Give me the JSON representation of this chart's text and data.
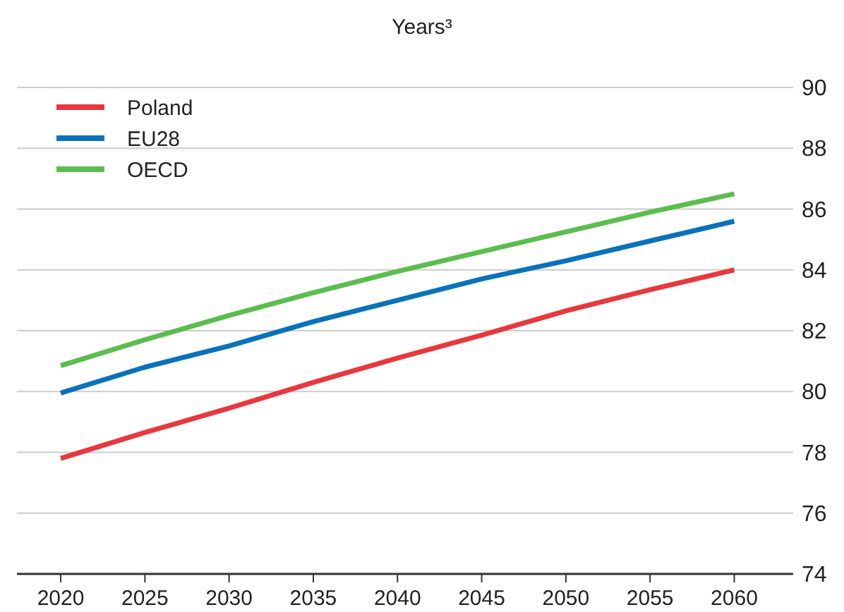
{
  "chart_data": {
    "type": "line",
    "subtitle": "Years³",
    "x": [
      2020,
      2025,
      2030,
      2035,
      2040,
      2045,
      2050,
      2055,
      2060
    ],
    "series": [
      {
        "name": "Poland",
        "color": "#e8383d",
        "values": [
          77.8,
          78.65,
          79.45,
          80.3,
          81.1,
          81.85,
          82.65,
          83.35,
          84.0
        ]
      },
      {
        "name": "EU28",
        "color": "#0a72ba",
        "values": [
          79.95,
          80.8,
          81.5,
          82.3,
          83.0,
          83.7,
          84.3,
          84.95,
          85.6
        ]
      },
      {
        "name": "OECD",
        "color": "#5cbd4f",
        "values": [
          80.85,
          81.7,
          82.5,
          83.25,
          83.95,
          84.6,
          85.25,
          85.9,
          86.5
        ]
      }
    ],
    "xlim": [
      2017.4,
      2063.5
    ],
    "xticks": [
      2020,
      2025,
      2030,
      2035,
      2040,
      2045,
      2050,
      2055,
      2060
    ],
    "ylim": [
      74,
      90
    ],
    "yticks": [
      74,
      76,
      78,
      80,
      82,
      84,
      86,
      88,
      90
    ],
    "grid": "y",
    "legend": "top left",
    "marker": "none",
    "line_style": "solid"
  }
}
